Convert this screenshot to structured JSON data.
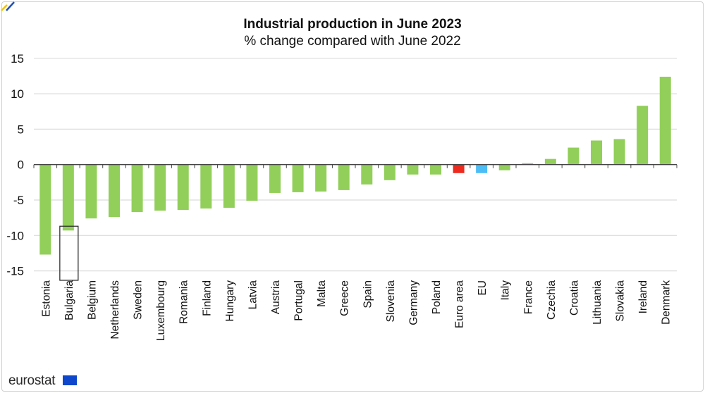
{
  "chart_data": {
    "type": "bar",
    "title": "Industrial production in June 2023",
    "subtitle": "% change compared with June 2022",
    "xlabel": "",
    "ylabel": "",
    "ylim": [
      -15,
      15
    ],
    "yticks": [
      15,
      10,
      5,
      0,
      -5,
      -10,
      -15
    ],
    "grid": true,
    "categories": [
      "Estonia",
      "Bulgaria",
      "Belgium",
      "Netherlands",
      "Sweden",
      "Luxembourg",
      "Romania",
      "Finland",
      "Hungary",
      "Latvia",
      "Austria",
      "Portugal",
      "Malta",
      "Greece",
      "Spain",
      "Slovenia",
      "Germany",
      "Poland",
      "Euro area",
      "EU",
      "Italy",
      "France",
      "Czechia",
      "Croatia",
      "Lithuania",
      "Slovakia",
      "Ireland",
      "Denmark"
    ],
    "values": [
      -12.7,
      -9.3,
      -7.6,
      -7.4,
      -6.7,
      -6.5,
      -6.4,
      -6.2,
      -6.1,
      -5.1,
      -4.0,
      -3.9,
      -3.8,
      -3.6,
      -2.8,
      -2.2,
      -1.4,
      -1.4,
      -1.2,
      -1.2,
      -0.8,
      0.2,
      0.8,
      2.4,
      3.4,
      3.6,
      8.3,
      12.4
    ],
    "highlighted_category": "Bulgaria",
    "colors": {
      "default": "#92cf5a",
      "Euro area": "#ee2a1f",
      "EU": "#4cbdf5"
    }
  },
  "footer": {
    "logo": "eurostat"
  }
}
